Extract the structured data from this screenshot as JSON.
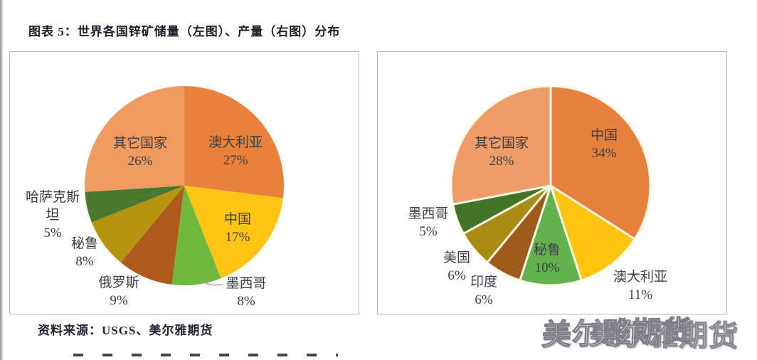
{
  "page": {
    "title": "图表 5：世界各国锌矿储量（左图）、产量（右图）分布",
    "source": "资料来源：USGS、美尔雅期货",
    "watermark": "美尔雅期货"
  },
  "colors": {
    "label_text": "#3e3e4a",
    "panel_border": "#b6b6bf",
    "slice_separator": "#fff8e6"
  },
  "chart_data": [
    {
      "type": "pie",
      "title": "世界各国锌矿储量分布（左图）",
      "unit": "%",
      "legend_position": "none",
      "start_angle_deg": 0,
      "direction": "clockwise",
      "slice_gap": false,
      "labels": [
        "澳大利亚",
        "中国",
        "墨西哥",
        "俄罗斯",
        "秘鲁",
        "哈萨克斯坦",
        "其它国家"
      ],
      "values": [
        27,
        17,
        8,
        9,
        8,
        5,
        26
      ],
      "colors": [
        "#E8823B",
        "#FFC514",
        "#6FB93F",
        "#AE5A1C",
        "#B6940F",
        "#49792E",
        "#EF9B5F"
      ]
    },
    {
      "type": "pie",
      "title": "世界各国锌矿产量分布（右图）",
      "unit": "%",
      "legend_position": "none",
      "start_angle_deg": 0,
      "direction": "clockwise",
      "slice_gap": true,
      "labels": [
        "中国",
        "澳大利亚",
        "秘鲁",
        "印度",
        "美国",
        "墨西哥",
        "其它国家"
      ],
      "values": [
        34,
        11,
        10,
        6,
        6,
        5,
        28
      ],
      "colors": [
        "#E5813C",
        "#FFC412",
        "#62B34D",
        "#9E5A1B",
        "#AA8C15",
        "#417427",
        "#EF9D66"
      ]
    }
  ]
}
